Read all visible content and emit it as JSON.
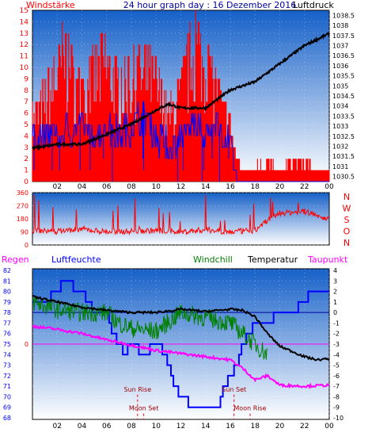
{
  "colors": {
    "wind": "#ff0000",
    "gust": "#ff0000",
    "avg": "#0000ff",
    "pressure": "#000000",
    "dir": "#ff0000",
    "hum": "#0000ff",
    "chill": "#008000",
    "temp": "#000000",
    "dew": "#ff00ff",
    "rain": "#ff0000",
    "moon": "#ff0000",
    "sky_top": "#1560c8",
    "sky_bottom": "#ffffff"
  },
  "header": {
    "left": "Windstärke",
    "center": "24 hour graph day : 16 Dezember 2016",
    "right": "Luftdruck"
  },
  "top_chart_data": {
    "type": "line",
    "x_ticks": [
      "02",
      "04",
      "06",
      "08",
      "10",
      "12",
      "14",
      "16",
      "18",
      "20",
      "22",
      "00"
    ],
    "y_left_ticks": [
      "0",
      "1",
      "2",
      "3",
      "4",
      "5",
      "6",
      "7",
      "8",
      "9",
      "10",
      "11",
      "12",
      "13",
      "14",
      "15"
    ],
    "y_right_ticks": [
      "1030.5",
      "1031",
      "1031.5",
      "1032",
      "1032.5",
      "1033",
      "1033.5",
      "1034",
      "1034.5",
      "1035",
      "1035.5",
      "1036",
      "1036.5",
      "1037",
      "1037.5",
      "1038",
      "1038.5"
    ],
    "ylim_left": [
      0,
      15
    ],
    "ylim_right": [
      1030.25,
      1038.75
    ],
    "pressure": [
      [
        0,
        1031.9
      ],
      [
        2,
        1032.1
      ],
      [
        4,
        1032.1
      ],
      [
        6,
        1032.6
      ],
      [
        8,
        1033.1
      ],
      [
        10,
        1033.8
      ],
      [
        11,
        1034.1
      ],
      [
        12,
        1033.9
      ],
      [
        14,
        1033.9
      ],
      [
        16,
        1034.8
      ],
      [
        18,
        1035.2
      ],
      [
        20,
        1036.1
      ],
      [
        22,
        1037.0
      ],
      [
        24,
        1037.6
      ]
    ],
    "gust": [
      [
        0,
        7
      ],
      [
        1.5,
        10
      ],
      [
        2.5,
        14
      ],
      [
        4,
        9
      ],
      [
        5,
        12
      ],
      [
        6,
        13
      ],
      [
        7,
        10
      ],
      [
        9,
        12
      ],
      [
        10,
        11
      ],
      [
        11,
        7
      ],
      [
        12,
        10
      ],
      [
        13,
        15
      ],
      [
        14,
        13
      ],
      [
        15,
        9
      ],
      [
        16,
        6
      ],
      [
        16.6,
        2
      ],
      [
        17,
        1
      ],
      [
        19,
        2
      ],
      [
        20,
        1
      ],
      [
        21,
        2
      ],
      [
        22,
        2
      ],
      [
        23,
        1
      ],
      [
        24,
        1
      ]
    ],
    "avg": [
      [
        0,
        4
      ],
      [
        2,
        4
      ],
      [
        4,
        5
      ],
      [
        5,
        4
      ],
      [
        6,
        5
      ],
      [
        7,
        4
      ],
      [
        8,
        5
      ],
      [
        9,
        6
      ],
      [
        10,
        4
      ],
      [
        11,
        3
      ],
      [
        12,
        4
      ],
      [
        13,
        5
      ],
      [
        14,
        4
      ],
      [
        15,
        5
      ],
      [
        16,
        3
      ],
      [
        16.5,
        0
      ],
      [
        24,
        0
      ]
    ]
  },
  "dir_chart_data": {
    "type": "scatter",
    "y_ticks": [
      "360",
      "270",
      "180",
      "90",
      "0"
    ],
    "ylim": [
      0,
      360
    ],
    "compass": [
      "N",
      "W",
      "S",
      "O",
      "N"
    ],
    "values": [
      [
        0,
        100
      ],
      [
        2,
        95
      ],
      [
        4,
        110
      ],
      [
        6,
        90
      ],
      [
        8,
        95
      ],
      [
        10,
        100
      ],
      [
        12,
        90
      ],
      [
        14,
        105
      ],
      [
        16,
        90
      ],
      [
        18,
        100
      ],
      [
        19,
        170
      ],
      [
        20,
        220
      ],
      [
        22,
        230
      ],
      [
        24,
        180
      ]
    ]
  },
  "bottom_chart_data": {
    "type": "line",
    "legend": [
      "Regen",
      "Luftfeuchte",
      "Windchill",
      "Temperatur",
      "Taupunkt"
    ],
    "y_left_ticks": [
      "82",
      "81",
      "80",
      "79",
      "78",
      "77",
      "76",
      "75",
      "74",
      "73",
      "72",
      "71",
      "70",
      "69",
      "68"
    ],
    "y_right_ticks": [
      "4",
      "3",
      "2",
      "1",
      "0",
      "-1",
      "-2",
      "-3",
      "-4",
      "-5",
      "-6",
      "-7",
      "-8",
      "-9",
      "-10"
    ],
    "rain_zero_label": "0",
    "ylim_left": [
      68,
      82
    ],
    "ylim_right": [
      -10,
      4
    ],
    "humidity": [
      [
        0,
        79
      ],
      [
        1,
        79
      ],
      [
        2,
        80
      ],
      [
        2.5,
        81
      ],
      [
        4,
        80
      ],
      [
        5,
        78
      ],
      [
        6,
        78
      ],
      [
        6.5,
        76
      ],
      [
        7,
        75
      ],
      [
        7.4,
        74
      ],
      [
        8,
        75
      ],
      [
        9,
        74
      ],
      [
        10,
        75
      ],
      [
        10.2,
        75
      ],
      [
        11,
        73
      ],
      [
        11.5,
        71
      ],
      [
        12,
        70
      ],
      [
        13,
        69
      ],
      [
        15,
        69
      ],
      [
        15.5,
        71
      ],
      [
        16.5,
        73
      ],
      [
        17,
        75
      ],
      [
        18,
        77
      ],
      [
        19,
        77
      ],
      [
        20,
        78
      ],
      [
        21,
        78
      ],
      [
        22,
        79
      ],
      [
        22.5,
        80
      ],
      [
        24,
        80
      ]
    ],
    "windchill": [
      [
        0,
        1
      ],
      [
        2,
        0.3
      ],
      [
        4,
        0
      ],
      [
        6,
        0
      ],
      [
        7,
        -1
      ],
      [
        8,
        -1.5
      ],
      [
        10,
        -1.8
      ],
      [
        12,
        0
      ],
      [
        14,
        -0.5
      ],
      [
        16,
        -1
      ],
      [
        17,
        -2
      ],
      [
        18,
        -3
      ],
      [
        19,
        -4
      ]
    ],
    "temperature": [
      [
        0,
        1.5
      ],
      [
        2,
        1
      ],
      [
        4,
        0.5
      ],
      [
        6,
        0.2
      ],
      [
        8,
        0
      ],
      [
        10,
        0
      ],
      [
        12,
        0.3
      ],
      [
        14,
        0.1
      ],
      [
        16,
        0.3
      ],
      [
        17,
        0.2
      ],
      [
        18,
        -0.4
      ],
      [
        19,
        -2
      ],
      [
        20,
        -3.2
      ],
      [
        22,
        -4.2
      ],
      [
        23,
        -4.5
      ],
      [
        24,
        -4.4
      ]
    ],
    "dewpoint": [
      [
        0,
        -1.3
      ],
      [
        2,
        -1.6
      ],
      [
        4,
        -2
      ],
      [
        6,
        -2.6
      ],
      [
        8,
        -3.1
      ],
      [
        10,
        -3.6
      ],
      [
        12,
        -3.9
      ],
      [
        14,
        -4.2
      ],
      [
        16,
        -4.5
      ],
      [
        17,
        -5.3
      ],
      [
        18,
        -6.4
      ],
      [
        19,
        -6.0
      ],
      [
        20,
        -6.9
      ],
      [
        22,
        -7.0
      ],
      [
        24,
        -6.9
      ]
    ],
    "events": [
      {
        "label": "Sun Rise",
        "x": 8.5,
        "y_level": -7.5
      },
      {
        "label": "Moon Set",
        "x": 9.0,
        "y_level": -9.3
      },
      {
        "label": "Sun Set",
        "x": 16.3,
        "y_level": -7.5
      },
      {
        "label": "Moon Rise",
        "x": 17.6,
        "y_level": -9.3
      }
    ]
  }
}
